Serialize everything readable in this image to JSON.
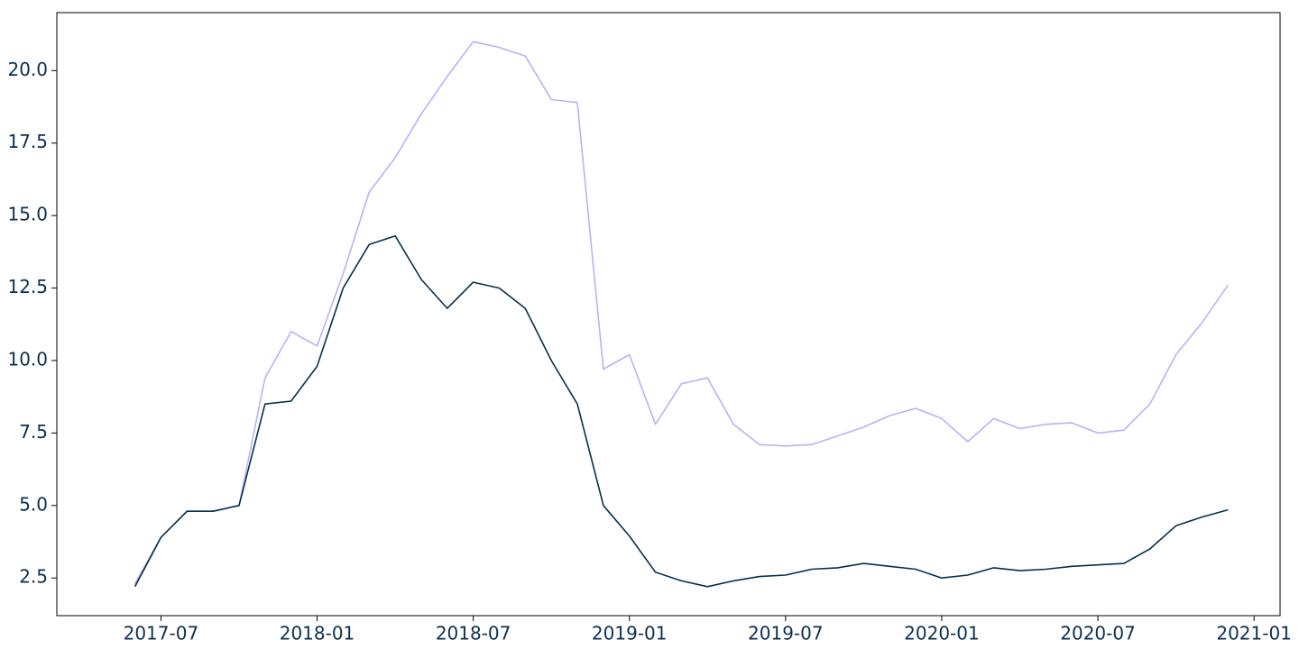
{
  "chart_data": {
    "type": "line",
    "x": [
      "2017-06",
      "2017-07",
      "2017-08",
      "2017-09",
      "2017-10",
      "2017-11",
      "2017-12",
      "2018-01",
      "2018-02",
      "2018-03",
      "2018-04",
      "2018-05",
      "2018-06",
      "2018-07",
      "2018-08",
      "2018-09",
      "2018-10",
      "2018-11",
      "2018-12",
      "2019-01",
      "2019-02",
      "2019-03",
      "2019-04",
      "2019-05",
      "2019-06",
      "2019-07",
      "2019-08",
      "2019-09",
      "2019-10",
      "2019-11",
      "2019-12",
      "2020-01",
      "2020-02",
      "2020-03",
      "2020-04",
      "2020-05",
      "2020-06",
      "2020-07",
      "2020-08",
      "2020-09",
      "2020-10",
      "2020-11",
      "2020-12"
    ],
    "series": [
      {
        "color": "#bbb0f8",
        "values": [
          2.3,
          3.9,
          4.8,
          4.8,
          5.0,
          9.4,
          11.0,
          10.5,
          13.0,
          15.8,
          17.0,
          18.5,
          19.8,
          21.0,
          20.8,
          20.5,
          19.0,
          18.9,
          9.7,
          10.2,
          7.8,
          9.2,
          9.4,
          7.8,
          7.1,
          7.05,
          7.1,
          7.4,
          7.7,
          8.1,
          8.35,
          8.0,
          7.2,
          8.0,
          7.65,
          7.8,
          7.85,
          7.5,
          7.6,
          8.5,
          10.2,
          11.3,
          12.6
        ]
      },
      {
        "color": "#06304a",
        "values": [
          2.2,
          3.9,
          4.8,
          4.8,
          5.0,
          8.5,
          8.6,
          9.8,
          12.5,
          14.0,
          14.3,
          12.8,
          11.8,
          12.7,
          12.5,
          11.8,
          10.0,
          8.5,
          5.0,
          3.95,
          2.7,
          2.4,
          2.2,
          2.4,
          2.55,
          2.6,
          2.8,
          2.85,
          3.0,
          2.9,
          2.8,
          2.5,
          2.6,
          2.85,
          2.75,
          2.8,
          2.9,
          2.95,
          3.0,
          3.5,
          4.3,
          4.6,
          4.85
        ]
      }
    ],
    "xlim": [
      "2017-03",
      "2021-02"
    ],
    "xticks": [
      "2017-07",
      "2018-01",
      "2018-07",
      "2019-01",
      "2019-07",
      "2020-01",
      "2020-07",
      "2021-01"
    ],
    "ylim": [
      1.2,
      22.0
    ],
    "yticks": [
      2.5,
      {
        "value": 5,
        "label": "5.0"
      },
      7.5,
      {
        "value": 10,
        "label": "10.0"
      },
      12.5,
      {
        "value": 15,
        "label": "15.0"
      },
      17.5,
      {
        "value": 20,
        "label": "20.0"
      }
    ]
  }
}
